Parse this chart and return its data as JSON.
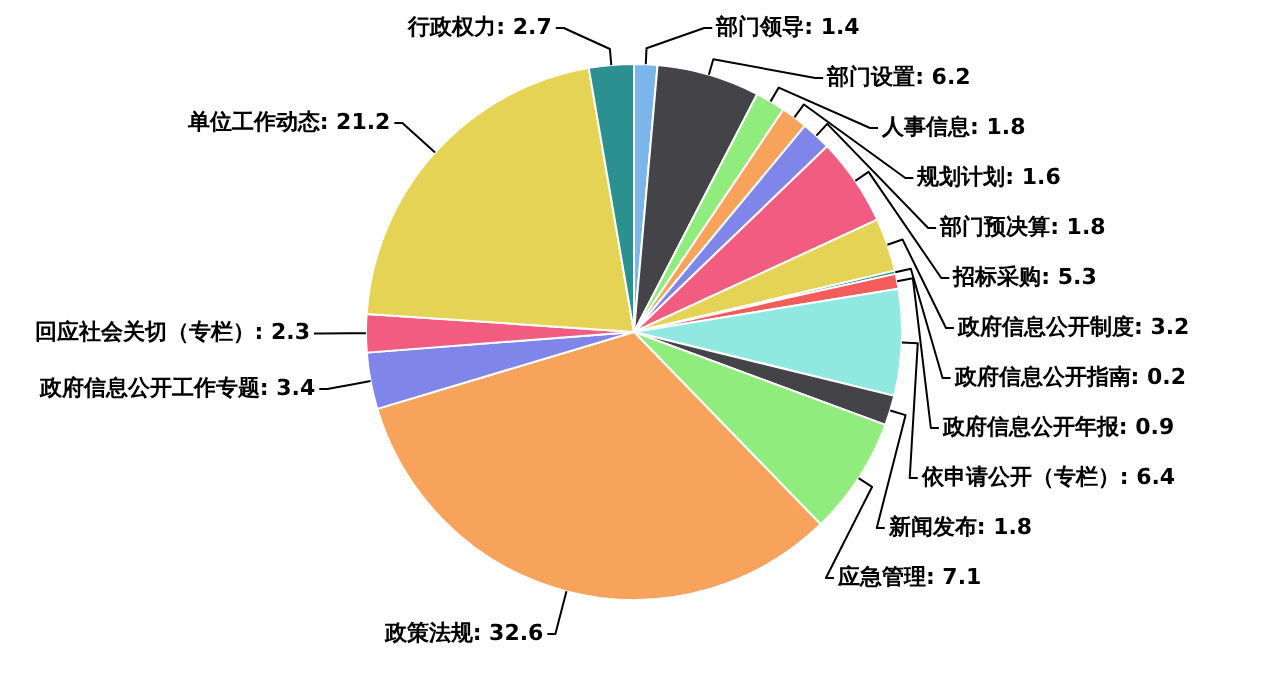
{
  "chart_data": {
    "type": "pie",
    "categories": [
      "部门领导",
      "部门设置",
      "人事信息",
      "规划计划",
      "部门预决算",
      "招标采购",
      "政府信息公开制度",
      "政府信息公开指南",
      "政府信息公开年报",
      "依申请公开（专栏）",
      "新闻发布",
      "应急管理",
      "政策法规",
      "政府信息公开工作专题",
      "回应社会关切（专栏）",
      "单位工作动态",
      "行政权力"
    ],
    "values": [
      1.4,
      6.2,
      1.8,
      1.6,
      1.8,
      5.3,
      3.2,
      0.2,
      0.9,
      6.4,
      1.8,
      7.1,
      32.6,
      3.4,
      2.3,
      21.2,
      2.7
    ],
    "value_labels": [
      ": 1.4",
      ": 6.2",
      ": 1.8",
      ": 1.6",
      ": 1.8",
      ": 5.3",
      ": 3.2",
      ": 0.2",
      ": 0.9",
      ": 6.4",
      ": 1.8",
      ": 7.1",
      ": 32.6",
      ": 3.4",
      ": 2.3",
      ": 21.2",
      ": 2.7"
    ],
    "colors": [
      "#7cb5ec",
      "#434348",
      "#90ed7d",
      "#f7a35c",
      "#8085e9",
      "#f15c80",
      "#e4d354",
      "#2b908f",
      "#f45b5b",
      "#91e8e1",
      "#434348",
      "#90ed7d",
      "#f7a35c",
      "#8085e9",
      "#f15c80",
      "#e4d354",
      "#2b908f"
    ]
  }
}
